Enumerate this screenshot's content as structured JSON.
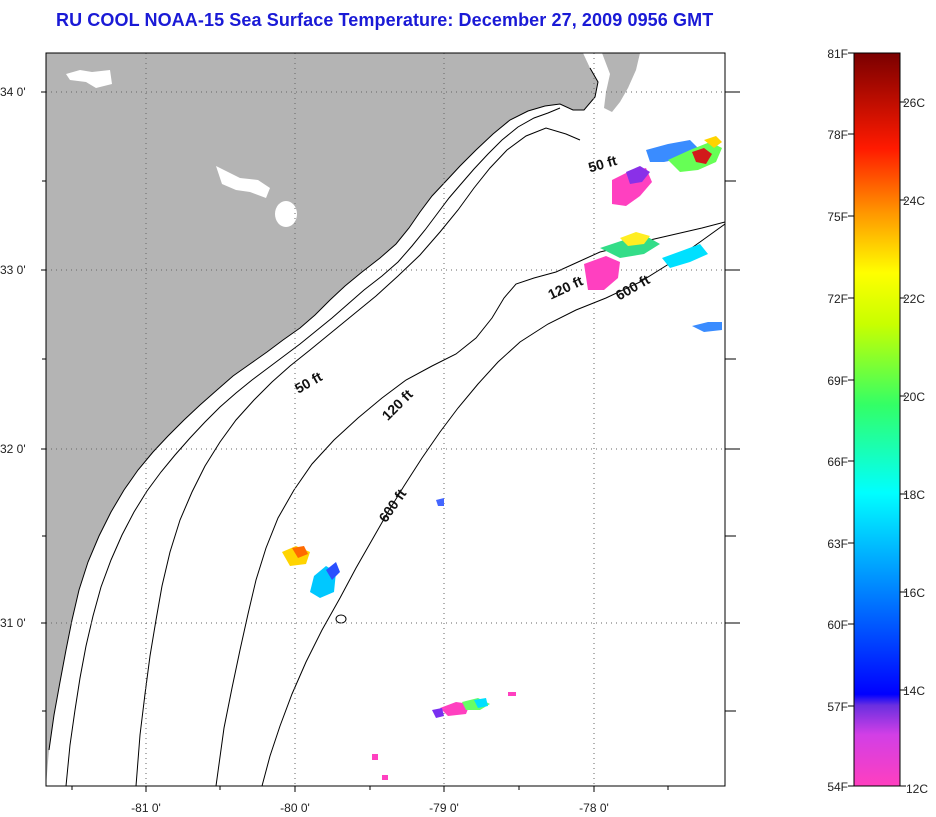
{
  "title": "RU COOL  NOAA-15  Sea Surface Temperature:  December 27, 2009 0956 GMT",
  "map": {
    "lat_ticks": [
      "34 0'",
      "33 0'",
      "32 0'",
      "31 0'"
    ],
    "lon_ticks": [
      "-81 0'",
      "-80 0'",
      "-79 0'",
      "-78 0'"
    ],
    "contours": [
      "50 ft",
      "50 ft",
      "120 ft",
      "120 ft",
      "600 ft",
      "600 ft"
    ],
    "colors": {
      "land": "#b4b4b4",
      "water": "#ffffff",
      "frame": "#000000"
    }
  },
  "colorbar": {
    "fahrenheit_labels": [
      "81F",
      "78F",
      "75F",
      "72F",
      "69F",
      "66F",
      "63F",
      "60F",
      "57F",
      "54F"
    ],
    "celsius_labels": [
      "26C",
      "24C",
      "22C",
      "20C",
      "18C",
      "16C",
      "14C",
      "12C"
    ]
  }
}
